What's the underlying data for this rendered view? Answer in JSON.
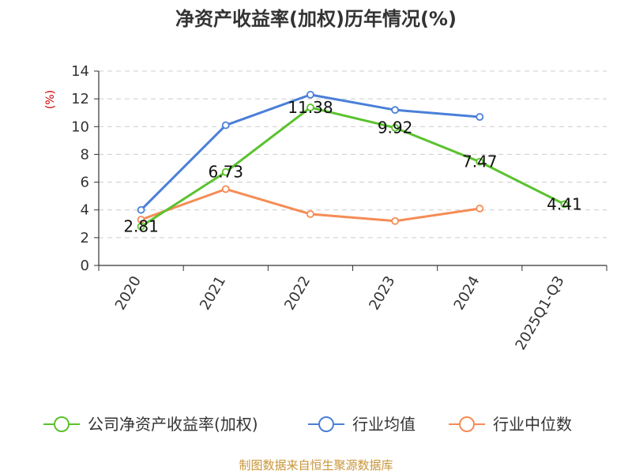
{
  "chart_data": {
    "type": "line",
    "title": "净资产收益率(加权)历年情况(%)",
    "ylabel": "(%)",
    "xlabel": "",
    "categories": [
      "2020",
      "2021",
      "2022",
      "2023",
      "2024",
      "2025Q1-Q3"
    ],
    "ylim": [
      0,
      14
    ],
    "yticks": [
      0,
      2,
      4,
      6,
      8,
      10,
      12,
      14
    ],
    "grid": true,
    "legend_position": "bottom",
    "series": [
      {
        "name": "公司净资产收益率(加权)",
        "color": "#5ac22e",
        "values": [
          2.81,
          6.73,
          11.38,
          9.92,
          7.47,
          4.41
        ],
        "labels": [
          "2.81",
          "6.73",
          "11.38",
          "9.92",
          "7.47",
          "4.41"
        ]
      },
      {
        "name": "行业均值",
        "color": "#4a7fd8",
        "values": [
          4.0,
          10.1,
          12.3,
          11.2,
          10.7,
          null
        ]
      },
      {
        "name": "行业中位数",
        "color": "#f58c55",
        "values": [
          3.3,
          5.5,
          3.7,
          3.2,
          4.1,
          null
        ]
      }
    ],
    "source": "制图数据来自恒生聚源数据库"
  }
}
